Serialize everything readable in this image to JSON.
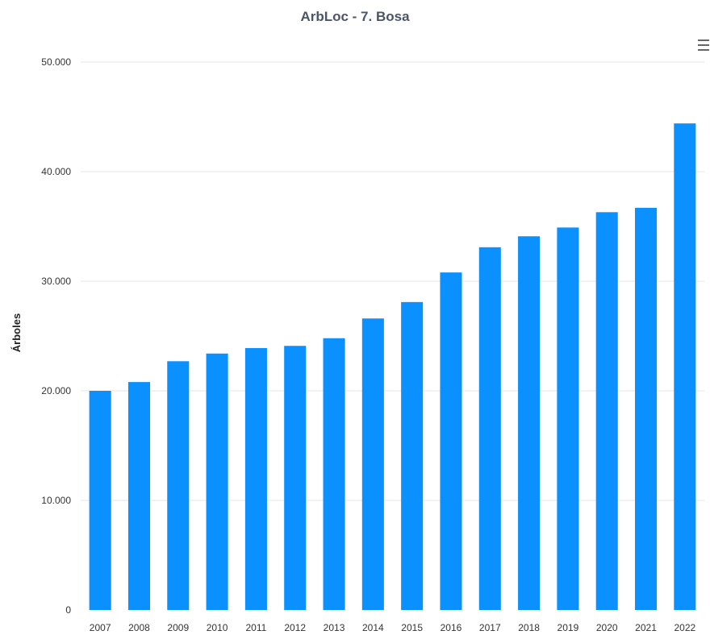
{
  "chart_data": {
    "type": "bar",
    "title": "ArbLoc - 7. Bosa",
    "ylabel": "Árboles",
    "xlabel": "",
    "categories": [
      "2007",
      "2008",
      "2009",
      "2010",
      "2011",
      "2012",
      "2013",
      "2014",
      "2015",
      "2016",
      "2017",
      "2018",
      "2019",
      "2020",
      "2021",
      "2022"
    ],
    "values": [
      20000,
      20800,
      22700,
      23400,
      23900,
      24100,
      24800,
      26600,
      28100,
      30800,
      33100,
      34100,
      34900,
      36300,
      36700,
      44400
    ],
    "ylim": [
      0,
      50000
    ],
    "yticks": [
      0,
      10000,
      20000,
      30000,
      40000,
      50000
    ],
    "ytick_labels": [
      "0",
      "10.000",
      "20.000",
      "30.000",
      "40.000",
      "50.000"
    ],
    "grid": true,
    "bar_color": "#0a90ff"
  },
  "menu_icon": "hamburger-menu-icon"
}
